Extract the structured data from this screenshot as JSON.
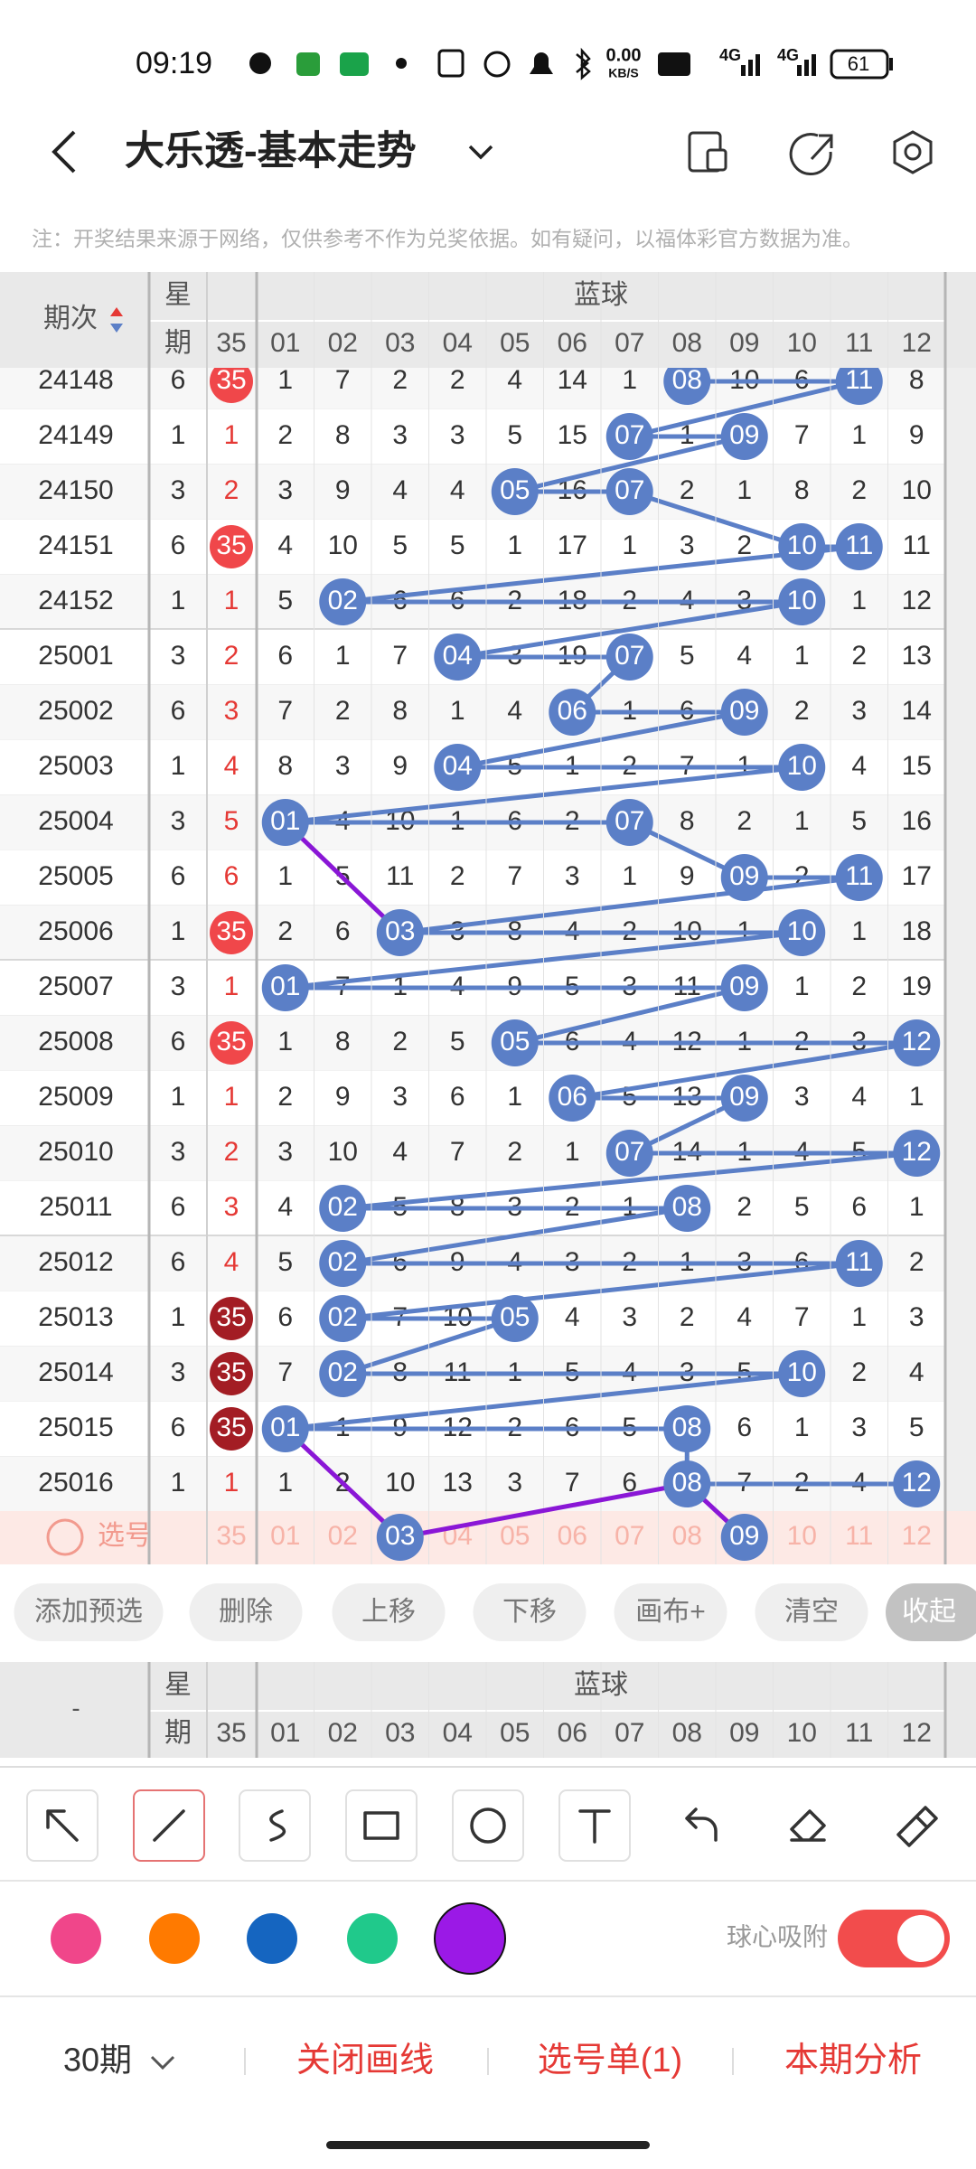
{
  "status_bar": {
    "time": "09:19",
    "net_speed": "0.00",
    "net_unit": "KB/S",
    "signal_1": "4G",
    "signal_2": "4G",
    "battery": "61"
  },
  "header": {
    "title": "大乐透-基本走势"
  },
  "note": "注：开奖结果来源于网络，仅供参考不作为兑奖依据。如有疑问，以福体彩官方数据为准。",
  "table": {
    "col_period": "期次",
    "col_week_1": "星",
    "col_week_2": "期",
    "group_label": "蓝球",
    "col_35": "35",
    "columns": [
      "01",
      "02",
      "03",
      "04",
      "05",
      "06",
      "07",
      "08",
      "09",
      "10",
      "11",
      "12"
    ],
    "rows": [
      {
        "period": "24148",
        "week": "6",
        "c35": "35",
        "c35_style": "ball",
        "cells": [
          "1",
          "7",
          "2",
          "2",
          "4",
          "14",
          "1",
          "08",
          "10",
          "6",
          "11",
          "8"
        ],
        "balls": [
          7,
          10
        ]
      },
      {
        "period": "24149",
        "week": "1",
        "c35": "1",
        "c35_style": "text",
        "cells": [
          "2",
          "8",
          "3",
          "3",
          "5",
          "15",
          "07",
          "1",
          "09",
          "7",
          "1",
          "9"
        ],
        "balls": [
          6,
          8
        ]
      },
      {
        "period": "24150",
        "week": "3",
        "c35": "2",
        "c35_style": "text",
        "cells": [
          "3",
          "9",
          "4",
          "4",
          "05",
          "16",
          "07",
          "2",
          "1",
          "8",
          "2",
          "10"
        ],
        "balls": [
          4,
          6
        ]
      },
      {
        "period": "24151",
        "week": "6",
        "c35": "35",
        "c35_style": "ball",
        "cells": [
          "4",
          "10",
          "5",
          "5",
          "1",
          "17",
          "1",
          "3",
          "2",
          "10",
          "11",
          "11"
        ],
        "balls": [
          9,
          10
        ]
      },
      {
        "period": "24152",
        "week": "1",
        "c35": "1",
        "c35_style": "text",
        "cells": [
          "5",
          "02",
          "6",
          "6",
          "2",
          "18",
          "2",
          "4",
          "3",
          "10",
          "1",
          "12"
        ],
        "balls": [
          1,
          9
        ]
      },
      {
        "period": "25001",
        "week": "3",
        "c35": "2",
        "c35_style": "text",
        "cells": [
          "6",
          "1",
          "7",
          "04",
          "3",
          "19",
          "07",
          "5",
          "4",
          "1",
          "2",
          "13"
        ],
        "balls": [
          3,
          6
        ]
      },
      {
        "period": "25002",
        "week": "6",
        "c35": "3",
        "c35_style": "text",
        "cells": [
          "7",
          "2",
          "8",
          "1",
          "4",
          "06",
          "1",
          "6",
          "09",
          "2",
          "3",
          "14"
        ],
        "balls": [
          5,
          8
        ]
      },
      {
        "period": "25003",
        "week": "1",
        "c35": "4",
        "c35_style": "text",
        "cells": [
          "8",
          "3",
          "9",
          "04",
          "5",
          "1",
          "2",
          "7",
          "1",
          "10",
          "4",
          "15"
        ],
        "balls": [
          3,
          9
        ]
      },
      {
        "period": "25004",
        "week": "3",
        "c35": "5",
        "c35_style": "text",
        "cells": [
          "01",
          "4",
          "10",
          "1",
          "6",
          "2",
          "07",
          "8",
          "2",
          "1",
          "5",
          "16"
        ],
        "balls": [
          0,
          6
        ]
      },
      {
        "period": "25005",
        "week": "6",
        "c35": "6",
        "c35_style": "text",
        "cells": [
          "1",
          "5",
          "11",
          "2",
          "7",
          "3",
          "1",
          "9",
          "09",
          "2",
          "11",
          "17"
        ],
        "balls": [
          8,
          10
        ]
      },
      {
        "period": "25006",
        "week": "1",
        "c35": "35",
        "c35_style": "ball",
        "cells": [
          "2",
          "6",
          "03",
          "3",
          "8",
          "4",
          "2",
          "10",
          "1",
          "10",
          "1",
          "18"
        ],
        "balls": [
          2,
          9
        ]
      },
      {
        "period": "25007",
        "week": "3",
        "c35": "1",
        "c35_style": "text",
        "cells": [
          "01",
          "7",
          "1",
          "4",
          "9",
          "5",
          "3",
          "11",
          "09",
          "1",
          "2",
          "19"
        ],
        "balls": [
          0,
          8
        ]
      },
      {
        "period": "25008",
        "week": "6",
        "c35": "35",
        "c35_style": "ball",
        "cells": [
          "1",
          "8",
          "2",
          "5",
          "05",
          "6",
          "4",
          "12",
          "1",
          "2",
          "3",
          "12"
        ],
        "balls": [
          4,
          11
        ]
      },
      {
        "period": "25009",
        "week": "1",
        "c35": "1",
        "c35_style": "text",
        "cells": [
          "2",
          "9",
          "3",
          "6",
          "1",
          "06",
          "5",
          "13",
          "09",
          "3",
          "4",
          "1"
        ],
        "balls": [
          5,
          8
        ]
      },
      {
        "period": "25010",
        "week": "3",
        "c35": "2",
        "c35_style": "text",
        "cells": [
          "3",
          "10",
          "4",
          "7",
          "2",
          "1",
          "07",
          "14",
          "1",
          "4",
          "5",
          "12"
        ],
        "balls": [
          6,
          11
        ]
      },
      {
        "period": "25011",
        "week": "6",
        "c35": "3",
        "c35_style": "text",
        "cells": [
          "4",
          "02",
          "5",
          "8",
          "3",
          "2",
          "1",
          "08",
          "2",
          "5",
          "6",
          "1"
        ],
        "balls": [
          1,
          7
        ]
      },
      {
        "period": "25012",
        "week": "6",
        "c35": "4",
        "c35_style": "text",
        "cells": [
          "5",
          "02",
          "6",
          "9",
          "4",
          "3",
          "2",
          "1",
          "3",
          "6",
          "11",
          "2"
        ],
        "balls": [
          1,
          10
        ]
      },
      {
        "period": "25013",
        "week": "1",
        "c35": "35",
        "c35_style": "dark",
        "cells": [
          "6",
          "02",
          "7",
          "10",
          "05",
          "4",
          "3",
          "2",
          "4",
          "7",
          "1",
          "3"
        ],
        "balls": [
          1,
          4
        ]
      },
      {
        "period": "25014",
        "week": "3",
        "c35": "35",
        "c35_style": "dark",
        "cells": [
          "7",
          "02",
          "8",
          "11",
          "1",
          "5",
          "4",
          "3",
          "5",
          "10",
          "2",
          "4"
        ],
        "balls": [
          1,
          9
        ]
      },
      {
        "period": "25015",
        "week": "6",
        "c35": "35",
        "c35_style": "dark",
        "cells": [
          "01",
          "1",
          "9",
          "12",
          "2",
          "6",
          "5",
          "08",
          "6",
          "1",
          "3",
          "5"
        ],
        "balls": [
          0,
          7
        ]
      },
      {
        "period": "25016",
        "week": "1",
        "c35": "1",
        "c35_style": "text",
        "cells": [
          "1",
          "2",
          "10",
          "13",
          "3",
          "7",
          "6",
          "08",
          "7",
          "2",
          "4",
          "12"
        ],
        "balls": [
          7,
          11
        ]
      }
    ],
    "pick_row": {
      "label": "选号",
      "balls": [
        2,
        8
      ]
    },
    "sticky_period": "-"
  },
  "buttons": [
    "添加预选",
    "删除",
    "上移",
    "下移",
    "画布+",
    "清空",
    "收起"
  ],
  "colors": [
    "#f0468a",
    "#ff7a00",
    "#1565c0",
    "#20c98b",
    "#9b19e6"
  ],
  "toggle_label": "球心吸附",
  "bottom_bar": {
    "period_select": "30期",
    "close_lines": "关闭画线",
    "pick_list": "选号单(1)",
    "analysis": "本期分析"
  }
}
